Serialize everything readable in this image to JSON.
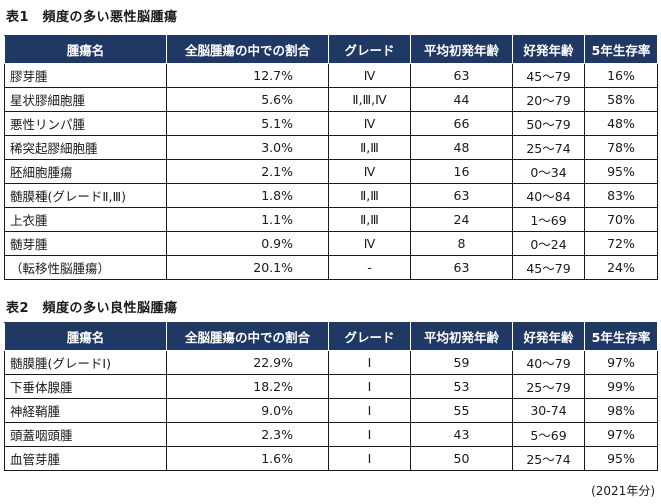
{
  "table1": {
    "caption": "表1　頻度の多い悪性脳腫瘍",
    "headers": [
      "腫瘍名",
      "全脳腫瘍の中での割合",
      "グレード",
      "平均初発年齢",
      "好発年齢",
      "5年生存率"
    ],
    "rows": [
      [
        "膠芽腫",
        "12.7%",
        "Ⅳ",
        "63",
        "45〜79",
        "16%"
      ],
      [
        "星状膠細胞腫",
        "5.6%",
        "Ⅱ,Ⅲ,Ⅳ",
        "44",
        "20〜79",
        "58%"
      ],
      [
        "悪性リンパ腫",
        "5.1%",
        "Ⅳ",
        "66",
        "50〜79",
        "48%"
      ],
      [
        "稀突起膠細胞腫",
        "3.0%",
        "Ⅱ,Ⅲ",
        "48",
        "25〜74",
        "78%"
      ],
      [
        "胚細胞腫瘍",
        "2.1%",
        "Ⅳ",
        "16",
        "0〜34",
        "95%"
      ],
      [
        "髄膜種(グレードⅡ,Ⅲ)",
        "1.8%",
        "Ⅱ,Ⅲ",
        "63",
        "40〜84",
        "83%"
      ],
      [
        "上衣腫",
        "1.1%",
        "Ⅱ,Ⅲ",
        "24",
        "1〜69",
        "70%"
      ],
      [
        "髄芽腫",
        "0.9%",
        "Ⅳ",
        "8",
        "0〜24",
        "72%"
      ],
      [
        "（転移性脳腫瘍）",
        "20.1%",
        "-",
        "63",
        "45〜79",
        "24%"
      ]
    ]
  },
  "table2": {
    "caption": "表2　頻度の多い良性脳腫瘍",
    "headers": [
      "腫瘍名",
      "全脳腫瘍の中での割合",
      "グレード",
      "平均初発年齢",
      "好発年齢",
      "5年生存率"
    ],
    "rows": [
      [
        "髄膜腫(グレードⅠ)",
        "22.9%",
        "Ⅰ",
        "59",
        "40〜79",
        "97%"
      ],
      [
        "下垂体腺腫",
        "18.2%",
        "Ⅰ",
        "53",
        "25〜79",
        "99%"
      ],
      [
        "神経鞘腫",
        "9.0%",
        "Ⅰ",
        "55",
        "30-74",
        "98%"
      ],
      [
        "頭蓋咽頭腫",
        "2.3%",
        "Ⅰ",
        "43",
        "5〜69",
        "97%"
      ],
      [
        "血管芽腫",
        "1.6%",
        "Ⅰ",
        "50",
        "25〜74",
        "95%"
      ]
    ]
  },
  "footnote": "(2021年分)",
  "colors": {
    "header_bg": "#203864",
    "header_text": "#ffffff",
    "border": "#1a1a1a"
  }
}
